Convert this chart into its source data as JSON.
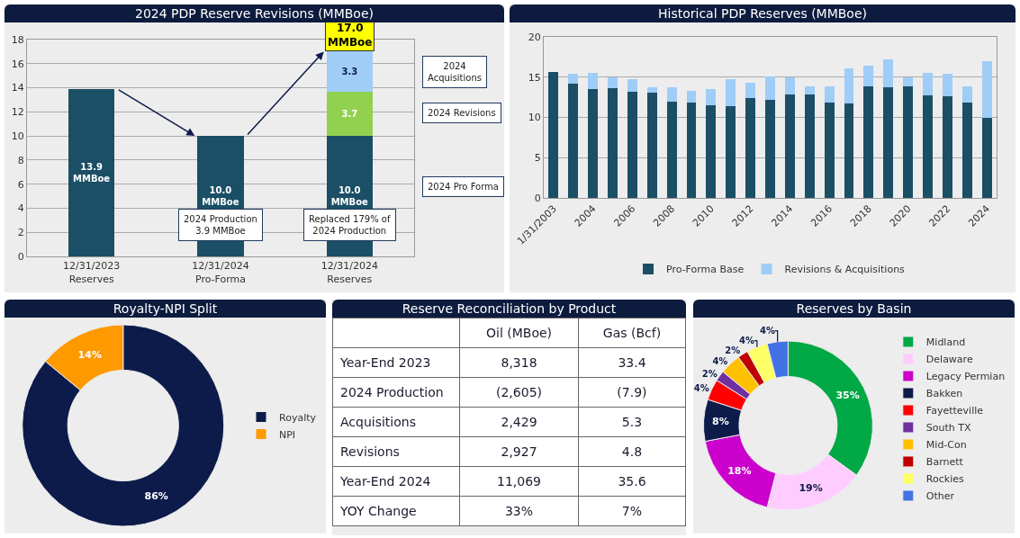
{
  "chart_data": [
    {
      "type": "bar",
      "title": "2024 PDP Reserve Revisions (MMBoe)",
      "categories": [
        "12/31/2023\nReserves",
        "12/31/2024\nPro-Forma",
        "12/31/2024\nReserves"
      ],
      "stacked": true,
      "series": [
        {
          "color": "#1a4f66",
          "values": [
            13.9,
            10.0,
            10.0
          ],
          "value_labels": [
            "13.9\nMMBoe",
            "10.0\nMMBoe",
            "10.0\nMMBoe"
          ]
        },
        {
          "color": "#92d050",
          "values": [
            null,
            null,
            3.7
          ],
          "value_labels": [
            null,
            null,
            "3.7"
          ]
        },
        {
          "color": "#9fcdf7",
          "values": [
            null,
            null,
            3.3
          ],
          "value_labels": [
            null,
            null,
            "3.3"
          ]
        }
      ],
      "totals": [
        null,
        null,
        "17.0\nMMBoe"
      ],
      "annotations": [
        "2024\nAcquisitions",
        "2024 Revisions",
        "2024 Pro Forma",
        "2024 Production\n3.9 MMBoe",
        "Replaced 179% of\n2024 Production"
      ],
      "ylim": [
        0,
        18
      ],
      "yticks": [
        0,
        2,
        4,
        6,
        8,
        10,
        12,
        14,
        16,
        18
      ],
      "grid": "y",
      "legend": false
    },
    {
      "type": "bar",
      "title": "Historical PDP Reserves (MMBoe)",
      "categories": [
        "1/31/2003",
        null,
        "2004",
        null,
        "2006",
        null,
        "2008",
        null,
        "2010",
        null,
        "2012",
        null,
        "2014",
        null,
        "2016",
        null,
        "2018",
        null,
        "2020",
        null,
        "2022",
        null,
        "2024"
      ],
      "stacked": true,
      "series": [
        {
          "name": "Pro-Forma Base",
          "color": "#1a4f66",
          "values": [
            15.6,
            14.2,
            13.5,
            13.6,
            13.2,
            13.1,
            12.0,
            11.9,
            11.5,
            11.4,
            12.4,
            12.2,
            12.8,
            12.8,
            11.8,
            11.7,
            13.8,
            13.7,
            13.9,
            12.7,
            12.6,
            11.9,
            10.0
          ]
        },
        {
          "name": "Revisions & Acquisitions",
          "color": "#9fcdf7",
          "values": [
            0,
            1.2,
            2.0,
            1.4,
            1.5,
            0.6,
            1.7,
            1.4,
            2.0,
            3.3,
            1.9,
            2.9,
            2.2,
            1.1,
            2.1,
            4.4,
            2.6,
            3.5,
            1.1,
            2.8,
            2.8,
            2.0,
            7.0
          ]
        }
      ],
      "ylim": [
        0,
        20
      ],
      "yticks": [
        0,
        5,
        10,
        15,
        20
      ],
      "grid": "y",
      "legend": "bottom"
    },
    {
      "type": "donut",
      "title": "Royalty-NPI Split",
      "categories": [
        "Royalty",
        "NPI"
      ],
      "values": [
        86,
        14
      ],
      "colors": [
        "#0d1b4b",
        "#ff9900"
      ],
      "value_labels": [
        "86%",
        "14%"
      ],
      "legend": "right"
    },
    {
      "type": "other",
      "title": "Reserve Reconciliation by Product",
      "annotations": [
        "Oil (MBoe)",
        "Gas (Bcf)",
        "Year-End 2023",
        "8,318",
        "33.4",
        "2024 Production",
        "(2,605)",
        "(7.9)",
        "Acquisitions",
        "2,429",
        "5.3",
        "Revisions",
        "2,927",
        "4.8",
        "Year-End 2024",
        "11,069",
        "35.6",
        "YOY Change",
        "33%",
        "7%"
      ]
    },
    {
      "type": "donut",
      "title": "Reserves by Basin",
      "categories": [
        "Midland",
        "Delaware",
        "Legacy Permian",
        "Bakken",
        "Fayetteville",
        "South TX",
        "Mid-Con",
        "Barnett",
        "Rockies",
        "Other"
      ],
      "values": [
        35,
        19,
        18,
        8,
        4,
        2,
        4,
        2,
        4,
        4
      ],
      "colors": [
        "#00a846",
        "#ffccff",
        "#cc00cc",
        "#0d1b4b",
        "#ff0000",
        "#7030a0",
        "#ffc000",
        "#c00000",
        "#ffff66",
        "#4472e4"
      ],
      "value_labels": [
        "35%",
        "19%",
        "18%",
        "8%",
        "4%",
        "2%",
        "4%",
        "2%",
        "4%",
        "4%"
      ],
      "legend": "right"
    }
  ]
}
